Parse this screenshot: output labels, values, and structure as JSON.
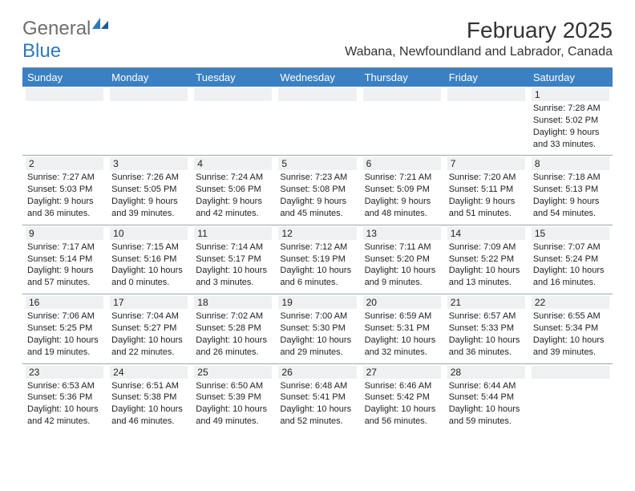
{
  "logo": {
    "word1": "General",
    "word2": "Blue",
    "word1_color": "#6e6e6e",
    "word2_color": "#2f78bd"
  },
  "header": {
    "month_year": "February 2025",
    "location": "Wabana, Newfoundland and Labrador, Canada"
  },
  "calendar": {
    "header_bg": "#3a80c3",
    "header_fg": "#ffffff",
    "daynum_bg": "#eef0f2",
    "row_divider": "#9aa6b0",
    "text_color": "#222222",
    "columns": [
      "Sunday",
      "Monday",
      "Tuesday",
      "Wednesday",
      "Thursday",
      "Friday",
      "Saturday"
    ],
    "weeks": [
      [
        null,
        null,
        null,
        null,
        null,
        null,
        {
          "day": "1",
          "sunrise": "Sunrise: 7:28 AM",
          "sunset": "Sunset: 5:02 PM",
          "daylight1": "Daylight: 9 hours",
          "daylight2": "and 33 minutes."
        }
      ],
      [
        {
          "day": "2",
          "sunrise": "Sunrise: 7:27 AM",
          "sunset": "Sunset: 5:03 PM",
          "daylight1": "Daylight: 9 hours",
          "daylight2": "and 36 minutes."
        },
        {
          "day": "3",
          "sunrise": "Sunrise: 7:26 AM",
          "sunset": "Sunset: 5:05 PM",
          "daylight1": "Daylight: 9 hours",
          "daylight2": "and 39 minutes."
        },
        {
          "day": "4",
          "sunrise": "Sunrise: 7:24 AM",
          "sunset": "Sunset: 5:06 PM",
          "daylight1": "Daylight: 9 hours",
          "daylight2": "and 42 minutes."
        },
        {
          "day": "5",
          "sunrise": "Sunrise: 7:23 AM",
          "sunset": "Sunset: 5:08 PM",
          "daylight1": "Daylight: 9 hours",
          "daylight2": "and 45 minutes."
        },
        {
          "day": "6",
          "sunrise": "Sunrise: 7:21 AM",
          "sunset": "Sunset: 5:09 PM",
          "daylight1": "Daylight: 9 hours",
          "daylight2": "and 48 minutes."
        },
        {
          "day": "7",
          "sunrise": "Sunrise: 7:20 AM",
          "sunset": "Sunset: 5:11 PM",
          "daylight1": "Daylight: 9 hours",
          "daylight2": "and 51 minutes."
        },
        {
          "day": "8",
          "sunrise": "Sunrise: 7:18 AM",
          "sunset": "Sunset: 5:13 PM",
          "daylight1": "Daylight: 9 hours",
          "daylight2": "and 54 minutes."
        }
      ],
      [
        {
          "day": "9",
          "sunrise": "Sunrise: 7:17 AM",
          "sunset": "Sunset: 5:14 PM",
          "daylight1": "Daylight: 9 hours",
          "daylight2": "and 57 minutes."
        },
        {
          "day": "10",
          "sunrise": "Sunrise: 7:15 AM",
          "sunset": "Sunset: 5:16 PM",
          "daylight1": "Daylight: 10 hours",
          "daylight2": "and 0 minutes."
        },
        {
          "day": "11",
          "sunrise": "Sunrise: 7:14 AM",
          "sunset": "Sunset: 5:17 PM",
          "daylight1": "Daylight: 10 hours",
          "daylight2": "and 3 minutes."
        },
        {
          "day": "12",
          "sunrise": "Sunrise: 7:12 AM",
          "sunset": "Sunset: 5:19 PM",
          "daylight1": "Daylight: 10 hours",
          "daylight2": "and 6 minutes."
        },
        {
          "day": "13",
          "sunrise": "Sunrise: 7:11 AM",
          "sunset": "Sunset: 5:20 PM",
          "daylight1": "Daylight: 10 hours",
          "daylight2": "and 9 minutes."
        },
        {
          "day": "14",
          "sunrise": "Sunrise: 7:09 AM",
          "sunset": "Sunset: 5:22 PM",
          "daylight1": "Daylight: 10 hours",
          "daylight2": "and 13 minutes."
        },
        {
          "day": "15",
          "sunrise": "Sunrise: 7:07 AM",
          "sunset": "Sunset: 5:24 PM",
          "daylight1": "Daylight: 10 hours",
          "daylight2": "and 16 minutes."
        }
      ],
      [
        {
          "day": "16",
          "sunrise": "Sunrise: 7:06 AM",
          "sunset": "Sunset: 5:25 PM",
          "daylight1": "Daylight: 10 hours",
          "daylight2": "and 19 minutes."
        },
        {
          "day": "17",
          "sunrise": "Sunrise: 7:04 AM",
          "sunset": "Sunset: 5:27 PM",
          "daylight1": "Daylight: 10 hours",
          "daylight2": "and 22 minutes."
        },
        {
          "day": "18",
          "sunrise": "Sunrise: 7:02 AM",
          "sunset": "Sunset: 5:28 PM",
          "daylight1": "Daylight: 10 hours",
          "daylight2": "and 26 minutes."
        },
        {
          "day": "19",
          "sunrise": "Sunrise: 7:00 AM",
          "sunset": "Sunset: 5:30 PM",
          "daylight1": "Daylight: 10 hours",
          "daylight2": "and 29 minutes."
        },
        {
          "day": "20",
          "sunrise": "Sunrise: 6:59 AM",
          "sunset": "Sunset: 5:31 PM",
          "daylight1": "Daylight: 10 hours",
          "daylight2": "and 32 minutes."
        },
        {
          "day": "21",
          "sunrise": "Sunrise: 6:57 AM",
          "sunset": "Sunset: 5:33 PM",
          "daylight1": "Daylight: 10 hours",
          "daylight2": "and 36 minutes."
        },
        {
          "day": "22",
          "sunrise": "Sunrise: 6:55 AM",
          "sunset": "Sunset: 5:34 PM",
          "daylight1": "Daylight: 10 hours",
          "daylight2": "and 39 minutes."
        }
      ],
      [
        {
          "day": "23",
          "sunrise": "Sunrise: 6:53 AM",
          "sunset": "Sunset: 5:36 PM",
          "daylight1": "Daylight: 10 hours",
          "daylight2": "and 42 minutes."
        },
        {
          "day": "24",
          "sunrise": "Sunrise: 6:51 AM",
          "sunset": "Sunset: 5:38 PM",
          "daylight1": "Daylight: 10 hours",
          "daylight2": "and 46 minutes."
        },
        {
          "day": "25",
          "sunrise": "Sunrise: 6:50 AM",
          "sunset": "Sunset: 5:39 PM",
          "daylight1": "Daylight: 10 hours",
          "daylight2": "and 49 minutes."
        },
        {
          "day": "26",
          "sunrise": "Sunrise: 6:48 AM",
          "sunset": "Sunset: 5:41 PM",
          "daylight1": "Daylight: 10 hours",
          "daylight2": "and 52 minutes."
        },
        {
          "day": "27",
          "sunrise": "Sunrise: 6:46 AM",
          "sunset": "Sunset: 5:42 PM",
          "daylight1": "Daylight: 10 hours",
          "daylight2": "and 56 minutes."
        },
        {
          "day": "28",
          "sunrise": "Sunrise: 6:44 AM",
          "sunset": "Sunset: 5:44 PM",
          "daylight1": "Daylight: 10 hours",
          "daylight2": "and 59 minutes."
        },
        null
      ]
    ]
  }
}
